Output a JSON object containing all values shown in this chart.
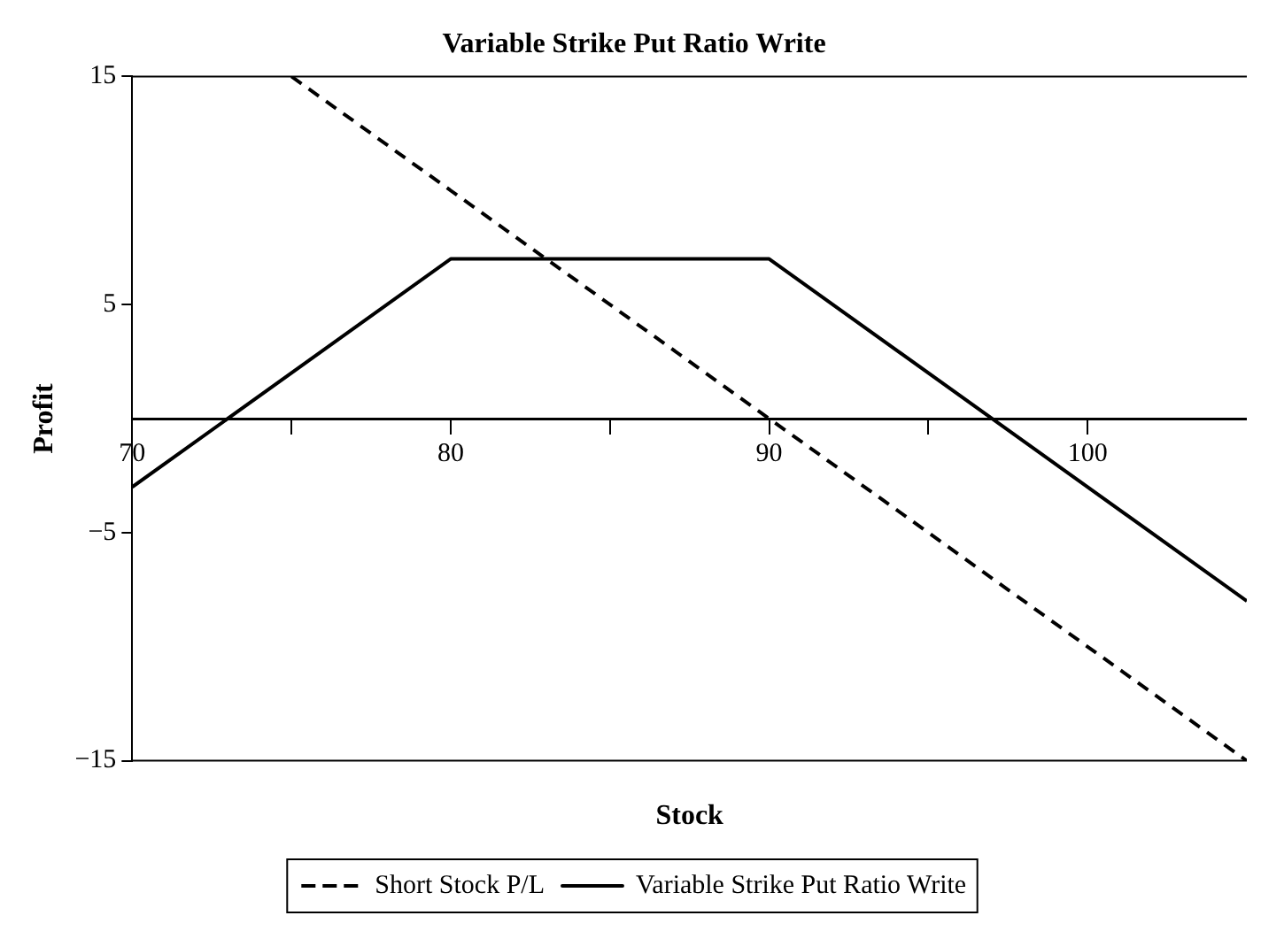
{
  "chart_data": {
    "type": "line",
    "title": "Variable Strike Put Ratio Write",
    "xlabel": "Stock",
    "ylabel": "Profit",
    "xlim": [
      70,
      105
    ],
    "xticks": [
      70,
      {
        "value": 75,
        "label": null
      },
      80,
      {
        "value": 85,
        "label": null
      },
      90,
      {
        "value": 95,
        "label": null
      },
      100
    ],
    "ylim": [
      -15,
      15
    ],
    "yticks": [
      {
        "value": -15,
        "label": "−15"
      },
      {
        "value": -5,
        "label": "−5"
      },
      5,
      15
    ],
    "series": [
      {
        "name": "Short Stock P/L",
        "color": "#000000",
        "x": [
          75,
          105
        ],
        "values": [
          15,
          -15
        ],
        "line_style": "dashed"
      },
      {
        "name": "Variable Strike Put Ratio Write",
        "color": "#000000",
        "x": [
          70,
          80,
          90,
          105
        ],
        "values": [
          -3,
          7,
          7,
          -8
        ],
        "line_style": "solid"
      }
    ],
    "grid": false,
    "legend": "bottom",
    "marker": "none"
  }
}
